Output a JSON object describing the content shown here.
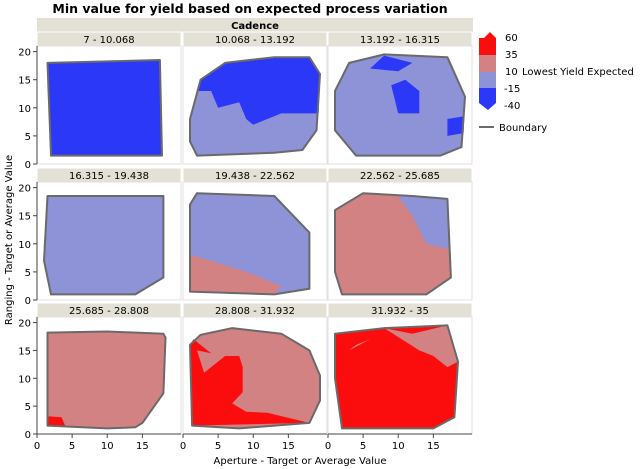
{
  "chart_data": {
    "type": "contour",
    "title": "Min value for yield based on expected process variation",
    "group_title": "Cadence",
    "xlabel": "Aperture - Target or Average Value",
    "ylabel": "Ranging - Target or Average Value",
    "xlim": [
      0,
      20.5
    ],
    "ylim": [
      0,
      21
    ],
    "x_ticks": [
      0,
      5,
      10,
      15
    ],
    "y_ticks": [
      0,
      5,
      10,
      15,
      20
    ],
    "legend": {
      "title": "Lowest Yield Expected",
      "ticks": [
        "60",
        "35",
        "10",
        "-15",
        "-40"
      ],
      "boundary_label": "Boundary",
      "placement": "right"
    },
    "colors": {
      "red": "#fb0d0d",
      "pink": "#d38284",
      "purple": "#8e92d6",
      "blue": "#2b38f7",
      "boundary": "#6a6a6a"
    },
    "panels": [
      {
        "label": "7 - 10.068",
        "base": "blue",
        "boundary": [
          [
            1.5,
            18
          ],
          [
            17.5,
            18.5
          ],
          [
            17.8,
            1.5
          ],
          [
            2,
            1.5
          ]
        ],
        "regions": []
      },
      {
        "label": "10.068 - 13.192",
        "base": "purple",
        "boundary": [
          [
            1,
            8
          ],
          [
            2.5,
            15
          ],
          [
            6,
            18
          ],
          [
            13,
            19
          ],
          [
            18,
            19
          ],
          [
            19.5,
            16
          ],
          [
            19,
            6
          ],
          [
            17,
            2.5
          ],
          [
            13,
            2
          ],
          [
            2,
            1.5
          ],
          [
            1,
            4
          ]
        ],
        "regions": [
          {
            "color": "blue",
            "points": [
              [
                2,
                13
              ],
              [
                2.5,
                15
              ],
              [
                6,
                18
              ],
              [
                13,
                19
              ],
              [
                18,
                19
              ],
              [
                19.5,
                16
              ],
              [
                19.3,
                9
              ],
              [
                14,
                9
              ],
              [
                10,
                7
              ],
              [
                9,
                8
              ],
              [
                8,
                11
              ],
              [
                5,
                10
              ],
              [
                4,
                13
              ]
            ]
          }
        ]
      },
      {
        "label": "13.192 - 16.315",
        "base": "purple",
        "boundary": [
          [
            1,
            13
          ],
          [
            3,
            18
          ],
          [
            8,
            19.5
          ],
          [
            17,
            19
          ],
          [
            19.5,
            12
          ],
          [
            19,
            3
          ],
          [
            16,
            1.5
          ],
          [
            4,
            1.5
          ],
          [
            1,
            6
          ]
        ],
        "regions": [
          {
            "color": "blue",
            "points": [
              [
                6,
                17
              ],
              [
                8,
                19.3
              ],
              [
                12,
                18
              ],
              [
                10,
                16.5
              ]
            ]
          },
          {
            "color": "blue",
            "points": [
              [
                9,
                14
              ],
              [
                11,
                15
              ],
              [
                13,
                13
              ],
              [
                13,
                9
              ],
              [
                10,
                9
              ]
            ]
          },
          {
            "color": "blue",
            "points": [
              [
                17,
                8
              ],
              [
                19.4,
                8.5
              ],
              [
                19.3,
                5.5
              ],
              [
                17,
                5
              ]
            ]
          }
        ]
      },
      {
        "label": "16.315 - 19.438",
        "base": "purple",
        "boundary": [
          [
            1.5,
            18.5
          ],
          [
            18,
            18.5
          ],
          [
            18,
            4
          ],
          [
            14,
            1
          ],
          [
            2,
            1
          ],
          [
            1,
            7
          ]
        ],
        "regions": []
      },
      {
        "label": "19.438 - 22.562",
        "base": "purple",
        "boundary": [
          [
            1,
            17
          ],
          [
            2,
            19
          ],
          [
            13,
            18.5
          ],
          [
            18,
            12
          ],
          [
            18,
            2
          ],
          [
            13,
            1
          ],
          [
            1,
            1.5
          ]
        ],
        "regions": [
          {
            "color": "pink",
            "points": [
              [
                1,
                8
              ],
              [
                4,
                7
              ],
              [
                9,
                5
              ],
              [
                14,
                2.5
              ],
              [
                13,
                1
              ],
              [
                1,
                1.5
              ]
            ]
          }
        ]
      },
      {
        "label": "22.562 - 25.685",
        "base": "pink",
        "boundary": [
          [
            1,
            16
          ],
          [
            5,
            19
          ],
          [
            12,
            18.5
          ],
          [
            17,
            18
          ],
          [
            17.5,
            4
          ],
          [
            14,
            1
          ],
          [
            2,
            1
          ],
          [
            1,
            5
          ]
        ],
        "regions": [
          {
            "color": "purple",
            "points": [
              [
                10,
                18.5
              ],
              [
                17,
                18
              ],
              [
                17.3,
                9
              ],
              [
                14,
                10
              ],
              [
                12,
                15
              ]
            ]
          }
        ]
      },
      {
        "label": "25.685 - 28.808",
        "base": "pink",
        "boundary": [
          [
            1.5,
            18.2
          ],
          [
            10,
            18.4
          ],
          [
            18,
            18
          ],
          [
            18.3,
            17.3
          ],
          [
            18,
            7.3
          ],
          [
            15,
            2
          ],
          [
            14,
            1.2
          ],
          [
            10,
            1
          ],
          [
            1.5,
            1.5
          ]
        ],
        "regions": [
          {
            "color": "red",
            "points": [
              [
                1.5,
                1.5
              ],
              [
                4,
                1.5
              ],
              [
                3.5,
                3
              ],
              [
                1.5,
                3.2
              ]
            ]
          }
        ]
      },
      {
        "label": "28.808 - 31.932",
        "base": "pink",
        "boundary": [
          [
            1,
            16
          ],
          [
            2.5,
            17.8
          ],
          [
            7,
            19
          ],
          [
            14,
            18
          ],
          [
            18,
            15
          ],
          [
            19.5,
            10.5
          ],
          [
            19.5,
            6
          ],
          [
            18,
            2
          ],
          [
            8,
            1
          ],
          [
            1.3,
            1.5
          ]
        ],
        "regions": [
          {
            "color": "red",
            "points": [
              [
                1.3,
                1.5
              ],
              [
                18,
                2
              ],
              [
                12,
                3.8
              ],
              [
                9,
                4
              ],
              [
                7,
                5.5
              ],
              [
                8.5,
                7.5
              ],
              [
                8.5,
                12
              ],
              [
                8,
                14
              ],
              [
                6,
                14
              ],
              [
                3,
                11
              ],
              [
                2.5,
                13
              ],
              [
                2,
                15
              ],
              [
                4,
                14.5
              ],
              [
                1.5,
                17
              ],
              [
                1,
                16
              ]
            ]
          }
        ]
      },
      {
        "label": "31.932 - 35",
        "base": "red",
        "boundary": [
          [
            1,
            18
          ],
          [
            8,
            19
          ],
          [
            17,
            19.5
          ],
          [
            18.5,
            13
          ],
          [
            18,
            3
          ],
          [
            15,
            1
          ],
          [
            2,
            1
          ],
          [
            1,
            10
          ]
        ],
        "regions": [
          {
            "color": "pink",
            "points": [
              [
                8,
                19
              ],
              [
                12,
                18
              ],
              [
                17,
                19.5
              ],
              [
                18.5,
                13
              ],
              [
                17,
                12
              ],
              [
                15,
                14
              ],
              [
                13,
                15
              ]
            ]
          },
          {
            "color": "pink",
            "points": [
              [
                3,
                15
              ],
              [
                6,
                17
              ],
              [
                4,
                16
              ]
            ]
          }
        ]
      }
    ]
  }
}
